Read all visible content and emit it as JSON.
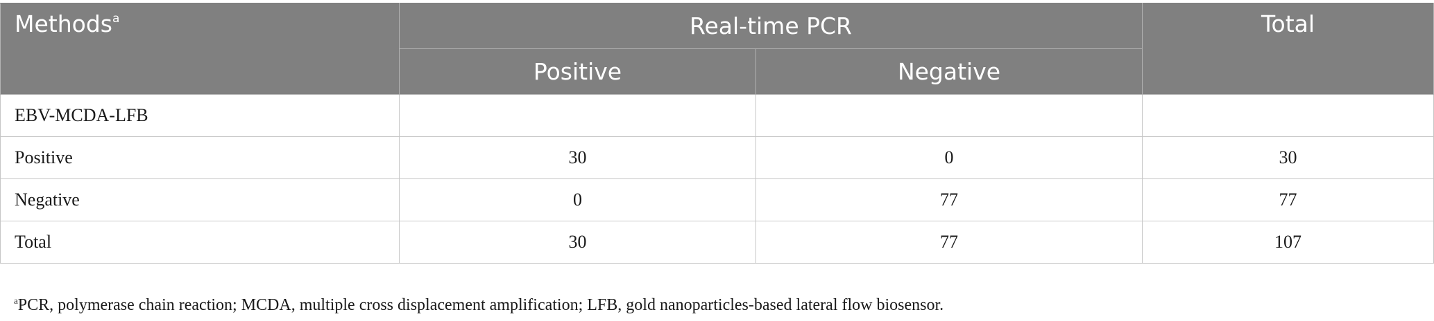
{
  "header": {
    "methods": "Methods",
    "methods_sup": "a",
    "realtime_pcr": "Real-time PCR",
    "total": "Total",
    "positive": "Positive",
    "negative": "Negative"
  },
  "rows": [
    {
      "label": "EBV-MCDA-LFB",
      "positive": "",
      "negative": "",
      "total": ""
    },
    {
      "label": "Positive",
      "positive": "30",
      "negative": "0",
      "total": "30"
    },
    {
      "label": "Negative",
      "positive": "0",
      "negative": "77",
      "total": "77"
    },
    {
      "label": "Total",
      "positive": "30",
      "negative": "77",
      "total": "107"
    }
  ],
  "footnote": {
    "marker": "a",
    "text": "PCR, polymerase chain reaction; MCDA, multiple cross displacement amplification; LFB, gold nanoparticles-based lateral flow biosensor."
  }
}
